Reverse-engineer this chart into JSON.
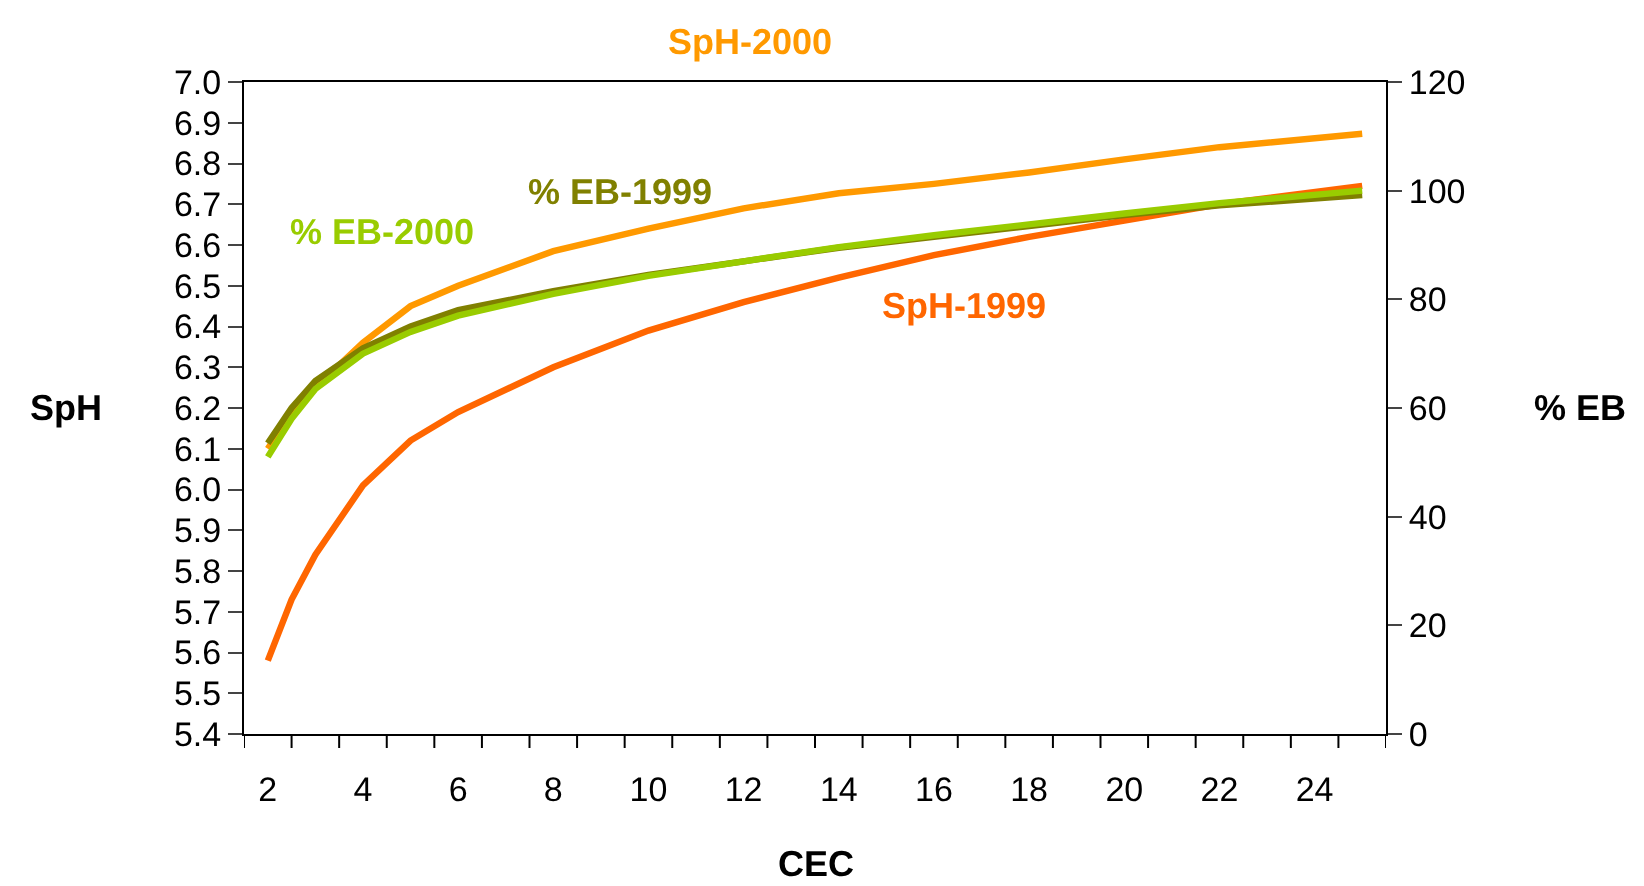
{
  "chart_data": {
    "type": "line",
    "xlabel": "CEC",
    "ylabel": "SpH",
    "y2label": "% EB",
    "x": [
      2,
      2.5,
      3,
      4,
      5,
      6,
      8,
      10,
      12,
      14,
      16,
      18,
      20,
      22,
      25
    ],
    "series": [
      {
        "name": "SpH-2000",
        "color": "#ff9900",
        "values": [
          6.1,
          6.19,
          6.25,
          6.36,
          6.45,
          6.5,
          6.585,
          6.64,
          6.69,
          6.727,
          6.75,
          6.778,
          6.81,
          6.84,
          6.873
        ]
      },
      {
        "name": "SpH-1999",
        "color": "#ff6600",
        "values": [
          5.58,
          5.73,
          5.84,
          6.01,
          6.12,
          6.19,
          6.3,
          6.39,
          6.46,
          6.52,
          6.575,
          6.62,
          6.66,
          6.7,
          6.745
        ]
      },
      {
        "name": "% EB-1999",
        "color": "#808000",
        "axis": "y2",
        "values": [
          53.5,
          60,
          65,
          71,
          75,
          78,
          81.5,
          84.5,
          87,
          89.5,
          91.5,
          93.5,
          95.5,
          97.3,
          99.2
        ]
      },
      {
        "name": "% EB-2000",
        "color": "#99cc00",
        "axis": "y2",
        "values": [
          51,
          58,
          63.5,
          70,
          74,
          77,
          81,
          84.3,
          87,
          89.6,
          91.8,
          93.8,
          95.8,
          97.7,
          100
        ]
      }
    ],
    "xlim": [
      1.5,
      25.5
    ],
    "xticks": [
      {
        "value": 2,
        "label": "2"
      },
      {
        "value": 4,
        "label": "4"
      },
      {
        "value": 6,
        "label": "6"
      },
      {
        "value": 8,
        "label": "8"
      },
      {
        "value": 10,
        "label": "10"
      },
      {
        "value": 12,
        "label": "12"
      },
      {
        "value": 14,
        "label": "14"
      },
      {
        "value": 16,
        "label": "16"
      },
      {
        "value": 18,
        "label": "18"
      },
      {
        "value": 20,
        "label": "20"
      },
      {
        "value": 22,
        "label": "22"
      },
      {
        "value": 24,
        "label": "24"
      },
      {
        "value": 1.5,
        "label": null
      },
      {
        "value": 2.5,
        "label": null
      },
      {
        "value": 3.5,
        "label": null
      },
      {
        "value": 4.5,
        "label": null
      },
      {
        "value": 5.5,
        "label": null
      },
      {
        "value": 6.5,
        "label": null
      },
      {
        "value": 7.5,
        "label": null
      },
      {
        "value": 8.5,
        "label": null
      },
      {
        "value": 9.5,
        "label": null
      },
      {
        "value": 10.5,
        "label": null
      },
      {
        "value": 11.5,
        "label": null
      },
      {
        "value": 12.5,
        "label": null
      },
      {
        "value": 13.5,
        "label": null
      },
      {
        "value": 14.5,
        "label": null
      },
      {
        "value": 15.5,
        "label": null
      },
      {
        "value": 16.5,
        "label": null
      },
      {
        "value": 17.5,
        "label": null
      },
      {
        "value": 18.5,
        "label": null
      },
      {
        "value": 19.5,
        "label": null
      },
      {
        "value": 20.5,
        "label": null
      },
      {
        "value": 21.5,
        "label": null
      },
      {
        "value": 22.5,
        "label": null
      },
      {
        "value": 23.5,
        "label": null
      },
      {
        "value": 24.5,
        "label": null
      },
      {
        "value": 25.5,
        "label": null
      }
    ],
    "ylim": [
      5.4,
      7.0
    ],
    "yticks": [
      {
        "value": 5.4,
        "label": "5.4"
      },
      {
        "value": 5.5,
        "label": "5.5"
      },
      {
        "value": 5.6,
        "label": "5.6"
      },
      {
        "value": 5.7,
        "label": "5.7"
      },
      {
        "value": 5.8,
        "label": "5.8"
      },
      {
        "value": 5.9,
        "label": "5.9"
      },
      {
        "value": 6.0,
        "label": "6.0"
      },
      {
        "value": 6.1,
        "label": "6.1"
      },
      {
        "value": 6.2,
        "label": "6.2"
      },
      {
        "value": 6.3,
        "label": "6.3"
      },
      {
        "value": 6.4,
        "label": "6.4"
      },
      {
        "value": 6.5,
        "label": "6.5"
      },
      {
        "value": 6.6,
        "label": "6.6"
      },
      {
        "value": 6.7,
        "label": "6.7"
      },
      {
        "value": 6.8,
        "label": "6.8"
      },
      {
        "value": 6.9,
        "label": "6.9"
      },
      {
        "value": 7.0,
        "label": "7.0"
      }
    ],
    "y2lim": [
      0,
      120
    ],
    "y2ticks": [
      0,
      20,
      40,
      60,
      80,
      100,
      120
    ],
    "grid": false,
    "legend": false,
    "marker": "none",
    "line_style": "solid"
  }
}
